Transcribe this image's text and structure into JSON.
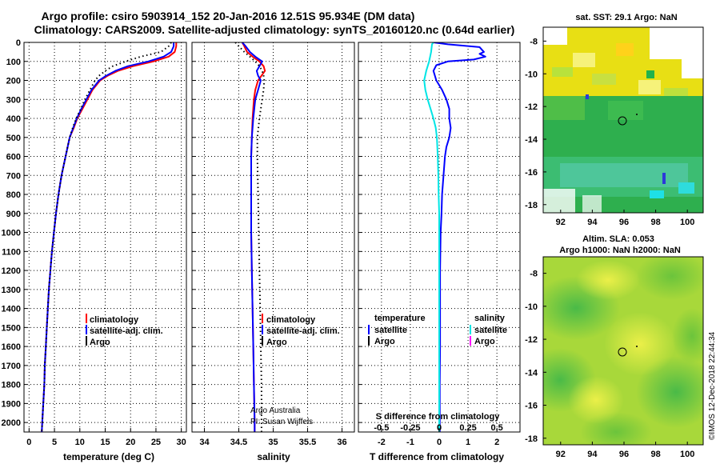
{
  "header": {
    "title_line1": "Argo profile: csiro 5903914_152 20-Jan-2016 12.51S 95.934E (DM data)",
    "title_line2": "Climatology: CARS2009. Satellite-adjusted climatology: synTS_20160120.nc (0.64d earlier)"
  },
  "colors": {
    "climatology": "#ff0000",
    "satellite_adj": "#0000ff",
    "argo": "#000000",
    "satellite_salinity": "#00e5e5",
    "argo_salinity": "#ff00ff"
  },
  "depth_ticks": [
    "0",
    "100",
    "200",
    "300",
    "400",
    "500",
    "600",
    "700",
    "800",
    "900",
    "1000",
    "1100",
    "1200",
    "1300",
    "1400",
    "1500",
    "1600",
    "1700",
    "1800",
    "1900",
    "2000"
  ],
  "right_panels": {
    "sst_title": "sat. SST: 29.1 Argo: NaN",
    "sla_title_line1": "Altim. SLA: 0.053",
    "sla_title_line2": "Argo h1000: NaN h2000: NaN",
    "lat_ticks": [
      "-8",
      "-10",
      "-12",
      "-14",
      "-16",
      "-18"
    ],
    "lon_ticks": [
      "92",
      "94",
      "96",
      "98",
      "100"
    ]
  },
  "credits": "©IMOS 12-Dec-2018 22:44:34",
  "chart_data": [
    {
      "type": "line",
      "xlabel": "temperature (deg C)",
      "xticks": [
        "0",
        "5",
        "10",
        "15",
        "20",
        "25",
        "30"
      ],
      "xlim": [
        -1,
        31
      ],
      "ylim": [
        2050,
        0
      ],
      "legend": [
        "climatology",
        "satellite-adj. clim.",
        "Argo"
      ],
      "series": [
        {
          "name": "climatology",
          "color": "#ff0000",
          "style": "solid",
          "depth": [
            0,
            20,
            50,
            75,
            100,
            125,
            150,
            175,
            200,
            250,
            300,
            350,
            400,
            450,
            500,
            600,
            700,
            800,
            900,
            1000,
            1100,
            1200,
            1300,
            1400,
            1500,
            1600,
            1700,
            1800,
            1900,
            2000,
            2050
          ],
          "values": [
            29.0,
            29.0,
            28.7,
            27.5,
            24.5,
            20.5,
            17.5,
            15.5,
            14.0,
            12.5,
            11.5,
            10.5,
            9.5,
            8.8,
            8.0,
            7.2,
            6.4,
            5.8,
            5.3,
            4.9,
            4.5,
            4.2,
            3.9,
            3.7,
            3.5,
            3.3,
            3.1,
            3.0,
            2.8,
            2.6,
            2.5
          ]
        },
        {
          "name": "satellite-adj. clim.",
          "color": "#0000ff",
          "style": "solid",
          "depth": [
            0,
            20,
            50,
            75,
            100,
            125,
            150,
            175,
            200,
            250,
            300,
            350,
            400,
            450,
            500,
            600,
            700,
            800,
            900,
            1000,
            1100,
            1200,
            1300,
            1400,
            1500,
            1600,
            1700,
            1800,
            1900,
            2000,
            2050
          ],
          "values": [
            28.5,
            28.5,
            28.0,
            26.5,
            23.5,
            19.5,
            17.0,
            15.2,
            13.8,
            12.3,
            11.3,
            10.3,
            9.4,
            8.7,
            8.0,
            7.2,
            6.4,
            5.8,
            5.3,
            4.9,
            4.5,
            4.2,
            3.9,
            3.7,
            3.5,
            3.3,
            3.1,
            3.0,
            2.8,
            2.6,
            2.5
          ]
        },
        {
          "name": "Argo",
          "color": "#000000",
          "style": "dotted",
          "depth": [
            0,
            20,
            50,
            75,
            100,
            125,
            150,
            175,
            200,
            250,
            300,
            350,
            400,
            450,
            500,
            600,
            700,
            800,
            900,
            1000,
            1100,
            1200,
            1300,
            1400,
            1500,
            1600,
            1700,
            1800,
            1900,
            2000,
            2050
          ],
          "values": [
            28.0,
            27.5,
            26.0,
            22.0,
            19.0,
            16.5,
            15.0,
            13.8,
            13.0,
            12.0,
            11.0,
            10.2,
            9.3,
            8.6,
            8.0,
            7.2,
            6.4,
            5.8,
            5.3,
            4.9,
            4.5,
            4.2,
            3.9,
            3.7,
            3.5,
            3.3,
            3.1,
            3.0,
            2.8,
            2.6,
            2.5
          ]
        }
      ]
    },
    {
      "type": "line",
      "xlabel": "salinity",
      "xticks": [
        "34",
        "34.5",
        "35",
        "35.5",
        "36"
      ],
      "xlim": [
        33.82,
        36.18
      ],
      "ylim": [
        2050,
        0
      ],
      "legend": [
        "climatology",
        "satellite-adj. clim.",
        "Argo"
      ],
      "series": [
        {
          "name": "climatology",
          "color": "#ff0000",
          "style": "solid",
          "depth": [
            0,
            20,
            50,
            75,
            100,
            125,
            150,
            175,
            200,
            250,
            300,
            400,
            500,
            600,
            800,
            1000,
            1200,
            1400,
            1600,
            1800,
            2000,
            2050
          ],
          "values": [
            34.55,
            34.58,
            34.62,
            34.7,
            34.8,
            34.86,
            34.88,
            34.83,
            34.78,
            34.74,
            34.72,
            34.7,
            34.69,
            34.68,
            34.68,
            34.68,
            34.69,
            34.7,
            34.71,
            34.72,
            34.73,
            34.73
          ]
        },
        {
          "name": "satellite-adj. clim.",
          "color": "#0000ff",
          "style": "solid",
          "depth": [
            0,
            20,
            50,
            75,
            100,
            125,
            150,
            175,
            200,
            250,
            300,
            400,
            500,
            600,
            800,
            1000,
            1200,
            1400,
            1600,
            1800,
            2000,
            2050
          ],
          "values": [
            34.55,
            34.6,
            34.66,
            34.74,
            34.84,
            34.8,
            34.76,
            34.78,
            34.82,
            34.78,
            34.74,
            34.71,
            34.69,
            34.68,
            34.68,
            34.68,
            34.69,
            34.7,
            34.71,
            34.72,
            34.73,
            34.73
          ]
        },
        {
          "name": "Argo",
          "color": "#000000",
          "style": "dotted",
          "depth": [
            0,
            20,
            50,
            75,
            100,
            125,
            150,
            175,
            200,
            250,
            300,
            400,
            500,
            600,
            800,
            1000,
            1200,
            1400,
            1600,
            1800,
            2000,
            2050
          ],
          "values": [
            34.45,
            34.5,
            34.58,
            34.66,
            34.74,
            34.8,
            34.84,
            34.86,
            34.87,
            34.86,
            34.84,
            34.8,
            34.77,
            34.77,
            34.78,
            34.79,
            34.8,
            34.81,
            34.82,
            34.83,
            34.83,
            34.83
          ]
        }
      ],
      "annotation_line1": "Argo Australia",
      "annotation_line2": "PI: Susan Wijffels"
    },
    {
      "type": "line",
      "xlabel": "T difference from climatology",
      "title_bottom": "S difference from climatology",
      "xticks": [
        "-2",
        "-1",
        "0",
        "1",
        "2"
      ],
      "xticks_salinity": [
        "-0.5",
        "-0.25",
        "0",
        "0.25",
        "0.5"
      ],
      "xlim": [
        -2.8,
        2.8
      ],
      "ylim": [
        2050,
        0
      ],
      "legend_left_title": "temperature",
      "legend_right_title": "salinity",
      "legend_left": [
        "satellite",
        "Argo"
      ],
      "legend_right": [
        "satellite",
        "Argo"
      ],
      "series": [
        {
          "name": "T satellite",
          "color": "#0000ff",
          "style": "solid",
          "depth": [
            0,
            10,
            25,
            50,
            60,
            75,
            90,
            100,
            120,
            150,
            200,
            250,
            300,
            350,
            400,
            450,
            500,
            550,
            600,
            700,
            800,
            900,
            1000,
            1200,
            1400,
            1600,
            1800,
            2000,
            2050
          ],
          "values": [
            -0.2,
            0.3,
            1.4,
            1.55,
            1.4,
            1.6,
            1.2,
            0.3,
            -0.1,
            -0.2,
            -0.1,
            0.1,
            0.25,
            0.35,
            0.35,
            0.4,
            0.35,
            0.25,
            0.2,
            0.15,
            0.1,
            0.08,
            0.05,
            0.03,
            0.03,
            0.03,
            0.02,
            0.02,
            0.02
          ]
        },
        {
          "name": "S satellite",
          "color": "#00e5e5",
          "style": "solid",
          "depth": [
            0,
            10,
            50,
            100,
            150,
            200,
            250,
            300,
            350,
            400,
            450,
            500,
            600,
            700,
            800,
            900,
            1000,
            1200,
            1400,
            1600,
            1800,
            2000,
            2050
          ],
          "values": [
            -0.2,
            -0.25,
            -0.28,
            -0.35,
            -0.45,
            -0.52,
            -0.48,
            -0.4,
            -0.3,
            -0.2,
            -0.12,
            -0.08,
            -0.05,
            -0.03,
            -0.02,
            0.0,
            0.0,
            0.0,
            0.0,
            0.0,
            0.0,
            0.0,
            0.0
          ]
        }
      ]
    }
  ]
}
